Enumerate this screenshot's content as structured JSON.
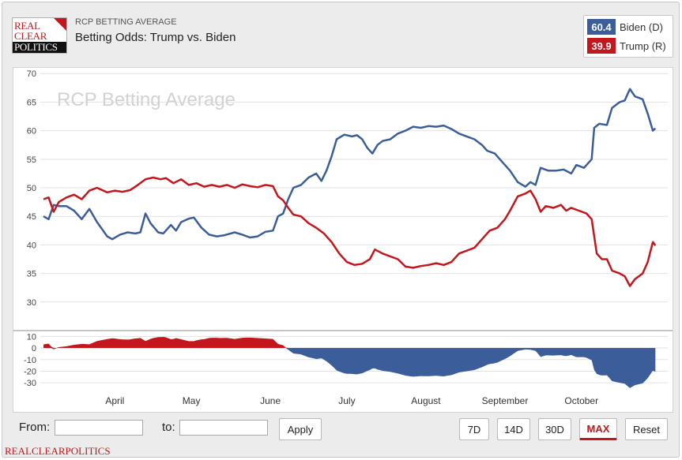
{
  "header": {
    "logo_lines": [
      "REAL",
      "CLEAR",
      "POLITICS"
    ],
    "kicker": "RCP BETTING AVERAGE",
    "title": "Betting Odds: Trump vs. Biden"
  },
  "legend": [
    {
      "value": "60.4",
      "name": "Biden (D)",
      "color": "#3b5e9a"
    },
    {
      "value": "39.9",
      "name": "Trump (R)",
      "color": "#c4161c"
    }
  ],
  "chart_data": {
    "type": "line",
    "watermark": "RCP Betting Average",
    "x_range": [
      "2020-03-04",
      "2020-11-02"
    ],
    "month_labels": [
      {
        "label": "April",
        "date": "2020-04-01"
      },
      {
        "label": "May",
        "date": "2020-05-01"
      },
      {
        "label": "June",
        "date": "2020-06-01"
      },
      {
        "label": "July",
        "date": "2020-07-01"
      },
      {
        "label": "August",
        "date": "2020-08-01"
      },
      {
        "label": "September",
        "date": "2020-09-01"
      },
      {
        "label": "October",
        "date": "2020-10-01"
      }
    ],
    "main_panel": {
      "ylim": [
        25,
        71
      ],
      "yticks": [
        30,
        35,
        40,
        45,
        50,
        55,
        60,
        65,
        70
      ],
      "grid": true
    },
    "spread_panel": {
      "ylim": [
        -36,
        15
      ],
      "yticks": [
        10,
        0,
        -10,
        -20,
        -30
      ],
      "ytick_labels": [
        "10",
        "0",
        "-10",
        "-20",
        "-30"
      ],
      "grid": true,
      "positive_color": "#c4161c",
      "negative_color": "#3b5e9a"
    },
    "series": [
      {
        "name": "Biden (D)",
        "color": "#3b5e9a",
        "points": [
          [
            "2020-03-04",
            45.0
          ],
          [
            "2020-03-06",
            44.5
          ],
          [
            "2020-03-08",
            47.0
          ],
          [
            "2020-03-10",
            46.8
          ],
          [
            "2020-03-13",
            46.8
          ],
          [
            "2020-03-16",
            46.0
          ],
          [
            "2020-03-19",
            44.5
          ],
          [
            "2020-03-22",
            46.3
          ],
          [
            "2020-03-25",
            44.0
          ],
          [
            "2020-03-29",
            41.5
          ],
          [
            "2020-03-31",
            41.0
          ],
          [
            "2020-04-03",
            41.8
          ],
          [
            "2020-04-06",
            42.2
          ],
          [
            "2020-04-09",
            42.0
          ],
          [
            "2020-04-11",
            42.2
          ],
          [
            "2020-04-13",
            45.5
          ],
          [
            "2020-04-15",
            43.8
          ],
          [
            "2020-04-18",
            42.2
          ],
          [
            "2020-04-20",
            42.0
          ],
          [
            "2020-04-23",
            43.5
          ],
          [
            "2020-04-25",
            42.5
          ],
          [
            "2020-04-27",
            44.0
          ],
          [
            "2020-04-30",
            44.6
          ],
          [
            "2020-05-02",
            44.8
          ],
          [
            "2020-05-05",
            43.0
          ],
          [
            "2020-05-08",
            41.8
          ],
          [
            "2020-05-11",
            41.5
          ],
          [
            "2020-05-14",
            41.7
          ],
          [
            "2020-05-18",
            42.2
          ],
          [
            "2020-05-21",
            41.8
          ],
          [
            "2020-05-24",
            41.3
          ],
          [
            "2020-05-27",
            41.5
          ],
          [
            "2020-05-30",
            42.3
          ],
          [
            "2020-06-02",
            42.5
          ],
          [
            "2020-06-04",
            45.0
          ],
          [
            "2020-06-06",
            45.5
          ],
          [
            "2020-06-08",
            48.0
          ],
          [
            "2020-06-10",
            50.0
          ],
          [
            "2020-06-13",
            50.5
          ],
          [
            "2020-06-16",
            51.8
          ],
          [
            "2020-06-19",
            52.5
          ],
          [
            "2020-06-21",
            51.2
          ],
          [
            "2020-06-23",
            53.0
          ],
          [
            "2020-06-25",
            55.5
          ],
          [
            "2020-06-27",
            58.5
          ],
          [
            "2020-06-30",
            59.3
          ],
          [
            "2020-07-03",
            59.0
          ],
          [
            "2020-07-05",
            59.2
          ],
          [
            "2020-07-07",
            58.5
          ],
          [
            "2020-07-09",
            57.0
          ],
          [
            "2020-07-11",
            56.0
          ],
          [
            "2020-07-13",
            57.5
          ],
          [
            "2020-07-15",
            58.2
          ],
          [
            "2020-07-18",
            58.5
          ],
          [
            "2020-07-21",
            59.5
          ],
          [
            "2020-07-24",
            60.0
          ],
          [
            "2020-07-27",
            60.7
          ],
          [
            "2020-07-30",
            60.5
          ],
          [
            "2020-08-02",
            60.8
          ],
          [
            "2020-08-05",
            60.7
          ],
          [
            "2020-08-08",
            60.9
          ],
          [
            "2020-08-11",
            60.3
          ],
          [
            "2020-08-14",
            59.5
          ],
          [
            "2020-08-17",
            59.0
          ],
          [
            "2020-08-20",
            58.5
          ],
          [
            "2020-08-23",
            57.5
          ],
          [
            "2020-08-25",
            56.5
          ],
          [
            "2020-08-28",
            56.0
          ],
          [
            "2020-08-31",
            54.5
          ],
          [
            "2020-09-03",
            53.0
          ],
          [
            "2020-09-06",
            51.0
          ],
          [
            "2020-09-09",
            50.2
          ],
          [
            "2020-09-11",
            51.0
          ],
          [
            "2020-09-13",
            50.5
          ],
          [
            "2020-09-15",
            53.5
          ],
          [
            "2020-09-18",
            53.0
          ],
          [
            "2020-09-21",
            53.0
          ],
          [
            "2020-09-24",
            53.2
          ],
          [
            "2020-09-27",
            52.5
          ],
          [
            "2020-09-29",
            54.0
          ],
          [
            "2020-10-02",
            53.5
          ],
          [
            "2020-10-05",
            55.0
          ],
          [
            "2020-10-06",
            60.5
          ],
          [
            "2020-10-08",
            61.2
          ],
          [
            "2020-10-11",
            61.0
          ],
          [
            "2020-10-13",
            64.0
          ],
          [
            "2020-10-16",
            65.0
          ],
          [
            "2020-10-18",
            65.3
          ],
          [
            "2020-10-20",
            67.3
          ],
          [
            "2020-10-22",
            66.0
          ],
          [
            "2020-10-25",
            65.5
          ],
          [
            "2020-10-27",
            63.0
          ],
          [
            "2020-10-29",
            60.0
          ],
          [
            "2020-10-30",
            60.4
          ]
        ]
      },
      {
        "name": "Trump (R)",
        "color": "#c4161c",
        "points": [
          [
            "2020-03-04",
            48.0
          ],
          [
            "2020-03-06",
            48.3
          ],
          [
            "2020-03-08",
            45.8
          ],
          [
            "2020-03-10",
            47.5
          ],
          [
            "2020-03-13",
            48.3
          ],
          [
            "2020-03-16",
            48.8
          ],
          [
            "2020-03-19",
            48.0
          ],
          [
            "2020-03-22",
            49.5
          ],
          [
            "2020-03-25",
            50.0
          ],
          [
            "2020-03-29",
            49.2
          ],
          [
            "2020-04-01",
            49.5
          ],
          [
            "2020-04-04",
            49.3
          ],
          [
            "2020-04-07",
            49.6
          ],
          [
            "2020-04-10",
            50.5
          ],
          [
            "2020-04-13",
            51.5
          ],
          [
            "2020-04-16",
            51.8
          ],
          [
            "2020-04-19",
            51.5
          ],
          [
            "2020-04-21",
            51.7
          ],
          [
            "2020-04-24",
            50.8
          ],
          [
            "2020-04-27",
            51.5
          ],
          [
            "2020-04-30",
            50.5
          ],
          [
            "2020-05-03",
            50.8
          ],
          [
            "2020-05-06",
            50.2
          ],
          [
            "2020-05-09",
            50.5
          ],
          [
            "2020-05-12",
            50.2
          ],
          [
            "2020-05-15",
            50.5
          ],
          [
            "2020-05-18",
            50.0
          ],
          [
            "2020-05-21",
            50.6
          ],
          [
            "2020-05-24",
            50.3
          ],
          [
            "2020-05-27",
            50.1
          ],
          [
            "2020-05-30",
            50.5
          ],
          [
            "2020-06-02",
            50.3
          ],
          [
            "2020-06-04",
            48.5
          ],
          [
            "2020-06-06",
            47.8
          ],
          [
            "2020-06-08",
            46.5
          ],
          [
            "2020-06-10",
            45.3
          ],
          [
            "2020-06-13",
            45.0
          ],
          [
            "2020-06-16",
            43.8
          ],
          [
            "2020-06-19",
            43.0
          ],
          [
            "2020-06-22",
            42.0
          ],
          [
            "2020-06-25",
            40.5
          ],
          [
            "2020-06-28",
            38.5
          ],
          [
            "2020-07-01",
            37.0
          ],
          [
            "2020-07-04",
            36.5
          ],
          [
            "2020-07-07",
            36.7
          ],
          [
            "2020-07-10",
            37.5
          ],
          [
            "2020-07-12",
            39.2
          ],
          [
            "2020-07-15",
            38.5
          ],
          [
            "2020-07-18",
            38.0
          ],
          [
            "2020-07-21",
            37.5
          ],
          [
            "2020-07-24",
            36.2
          ],
          [
            "2020-07-27",
            36.0
          ],
          [
            "2020-07-30",
            36.3
          ],
          [
            "2020-08-02",
            36.5
          ],
          [
            "2020-08-05",
            36.8
          ],
          [
            "2020-08-08",
            36.5
          ],
          [
            "2020-08-11",
            37.0
          ],
          [
            "2020-08-14",
            38.5
          ],
          [
            "2020-08-17",
            39.0
          ],
          [
            "2020-08-20",
            39.5
          ],
          [
            "2020-08-23",
            41.0
          ],
          [
            "2020-08-26",
            42.5
          ],
          [
            "2020-08-29",
            43.0
          ],
          [
            "2020-09-01",
            44.5
          ],
          [
            "2020-09-03",
            46.0
          ],
          [
            "2020-09-06",
            48.5
          ],
          [
            "2020-09-09",
            49.0
          ],
          [
            "2020-09-11",
            49.5
          ],
          [
            "2020-09-13",
            48.0
          ],
          [
            "2020-09-15",
            45.8
          ],
          [
            "2020-09-17",
            46.8
          ],
          [
            "2020-09-20",
            46.5
          ],
          [
            "2020-09-23",
            47.0
          ],
          [
            "2020-09-25",
            46.0
          ],
          [
            "2020-09-27",
            46.5
          ],
          [
            "2020-09-30",
            46.0
          ],
          [
            "2020-10-03",
            45.5
          ],
          [
            "2020-10-05",
            44.5
          ],
          [
            "2020-10-07",
            38.5
          ],
          [
            "2020-10-09",
            37.5
          ],
          [
            "2020-10-11",
            37.5
          ],
          [
            "2020-10-13",
            35.5
          ],
          [
            "2020-10-16",
            35.0
          ],
          [
            "2020-10-18",
            34.5
          ],
          [
            "2020-10-20",
            32.8
          ],
          [
            "2020-10-22",
            34.0
          ],
          [
            "2020-10-25",
            35.0
          ],
          [
            "2020-10-27",
            37.0
          ],
          [
            "2020-10-29",
            40.5
          ],
          [
            "2020-10-30",
            39.9
          ]
        ]
      }
    ]
  },
  "footer": {
    "from_label": "From:",
    "to_label": "to:",
    "apply_label": "Apply",
    "ranges": [
      "7D",
      "14D",
      "30D",
      "MAX"
    ],
    "active_range": "MAX",
    "reset_label": "Reset",
    "brand": "REALCLEARPOLITICS"
  }
}
